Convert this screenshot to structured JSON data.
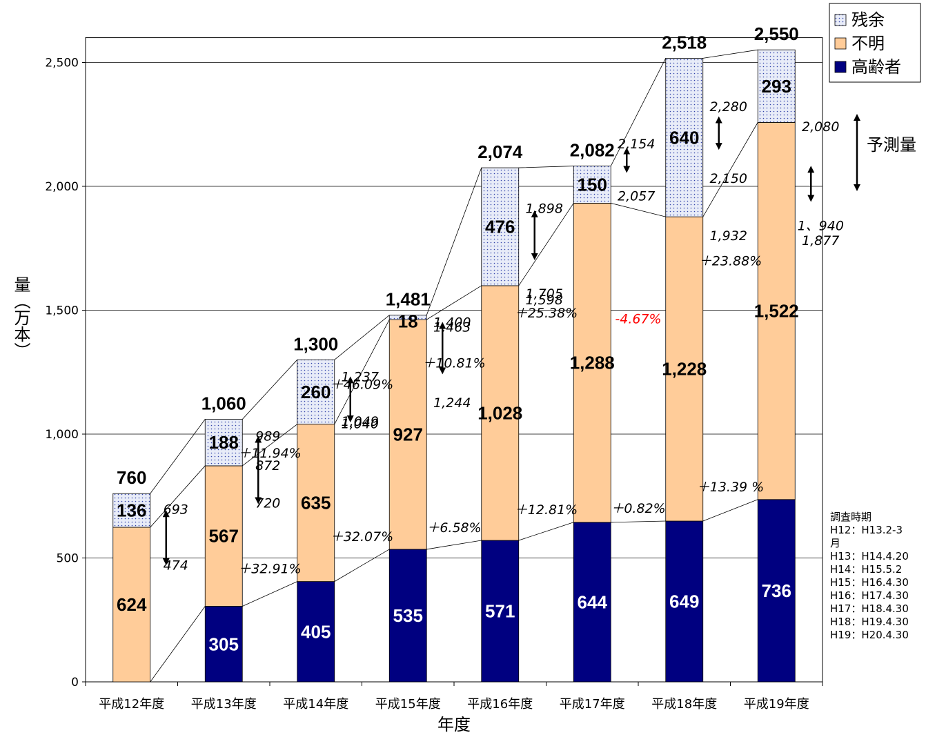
{
  "chart_data": {
    "type": "bar",
    "stacked": true,
    "xlabel": "年度",
    "ylabel": "量（万本）",
    "ylim": [
      0,
      2600
    ],
    "yticks": [
      0,
      500,
      1000,
      1500,
      2000,
      2500
    ],
    "ytick_labels": [
      "0",
      "500",
      "1,000",
      "1,500",
      "2,000",
      "2,500"
    ],
    "grid": true,
    "legend_position": "top-right",
    "categories": [
      "平成12年度",
      "平成13年度",
      "平成14年度",
      "平成15年度",
      "平成16年度",
      "平成17年度",
      "平成18年度",
      "平成19年度"
    ],
    "series": [
      {
        "name": "高齢者",
        "color": "#000080",
        "values": [
          0,
          305,
          405,
          535,
          571,
          644,
          649,
          736
        ],
        "labels": [
          "",
          "305",
          "405",
          "535",
          "571",
          "644",
          "649",
          "736"
        ]
      },
      {
        "name": "不明",
        "color": "#FFCC99",
        "values": [
          624,
          567,
          635,
          927,
          1028,
          1288,
          1228,
          1522
        ],
        "labels": [
          "624",
          "567",
          "635",
          "927",
          "1,028",
          "1,288",
          "1,228",
          "1,522"
        ]
      },
      {
        "name": "残余",
        "color": "#E8ECF8",
        "values": [
          136,
          188,
          260,
          18,
          476,
          150,
          640,
          293
        ],
        "labels": [
          "136",
          "188",
          "260",
          "18",
          "476",
          "150",
          "640",
          "293"
        ]
      }
    ],
    "totals": [
      "760",
      "1,060",
      "1,300",
      "1,481",
      "2,074",
      "2,082",
      "2,518",
      "2,550"
    ],
    "legend": [
      "残余",
      "不明",
      "高齢者"
    ],
    "annotations": [
      {
        "text": "693",
        "x": 0,
        "y": 695
      },
      {
        "text": "474",
        "x": 0,
        "y": 470
      },
      {
        "text": "989",
        "x": 1,
        "y": 990
      },
      {
        "text": "720",
        "x": 1,
        "y": 720
      },
      {
        "text": "872",
        "x": 1,
        "y": 872
      },
      {
        "text": "1,237",
        "x": 2,
        "y": 1230
      },
      {
        "text": "1,049",
        "x": 2,
        "y": 1050
      },
      {
        "text": "1,040",
        "x": 2,
        "y": 1040
      },
      {
        "text": "1,400",
        "x": 3,
        "y": 1450
      },
      {
        "text": "1,244",
        "x": 3,
        "y": 1125
      },
      {
        "text": "1,463",
        "x": 3,
        "y": 1430
      },
      {
        "text": "1,898",
        "x": 4,
        "y": 1910
      },
      {
        "text": "1,705",
        "x": 4,
        "y": 1565
      },
      {
        "text": "1,598",
        "x": 4,
        "y": 1540
      },
      {
        "text": "2,154",
        "x": 5,
        "y": 2170
      },
      {
        "text": "2,057",
        "x": 5,
        "y": 1960
      },
      {
        "text": "2,280",
        "x": 6,
        "y": 2320
      },
      {
        "text": "2,150",
        "x": 6,
        "y": 2030
      },
      {
        "text": "1,932",
        "x": 6,
        "y": 1800
      },
      {
        "text": "2,080",
        "x": 7,
        "y": 2240
      },
      {
        "text": "1、940",
        "x": 7,
        "y": 1840
      },
      {
        "text": "1,877",
        "x": 7,
        "y": 1780
      }
    ],
    "growth_labels": [
      {
        "text": "＋32.91%",
        "series": "高齢者",
        "x": 2
      },
      {
        "text": "＋32.07%",
        "series": "高齢者",
        "x": 3
      },
      {
        "text": "＋6.58%",
        "series": "高齢者",
        "x": 4
      },
      {
        "text": "＋12.81%",
        "series": "高齢者",
        "x": 5
      },
      {
        "text": "＋0.82%",
        "series": "高齢者",
        "x": 6
      },
      {
        "text": "＋13.39 %",
        "series": "高齢者",
        "x": 7
      },
      {
        "text": "＋11.94%",
        "series": "不明",
        "x": 2
      },
      {
        "text": "＋46.09%",
        "series": "不明",
        "x": 3
      },
      {
        "text": "＋10.81%",
        "series": "不明",
        "x": 4
      },
      {
        "text": "＋25.38%",
        "series": "不明",
        "x": 5
      },
      {
        "text": "-4.67%",
        "series": "不明",
        "x": 6,
        "color": "#FF0000"
      },
      {
        "text": "＋23.88%",
        "series": "不明",
        "x": 7
      }
    ],
    "forecast_label": "予測量"
  },
  "notes": {
    "survey_title": "調査時期",
    "survey_lines": [
      "H12：H13.2-3",
      "月",
      "H13：H14.4.20",
      "H14：H15.5.2",
      "H15：H16.4.30",
      "H16：H17.4.30",
      "H17：H18.4.30",
      "H18：H19.4.30",
      "H19：H20.4.30"
    ]
  }
}
